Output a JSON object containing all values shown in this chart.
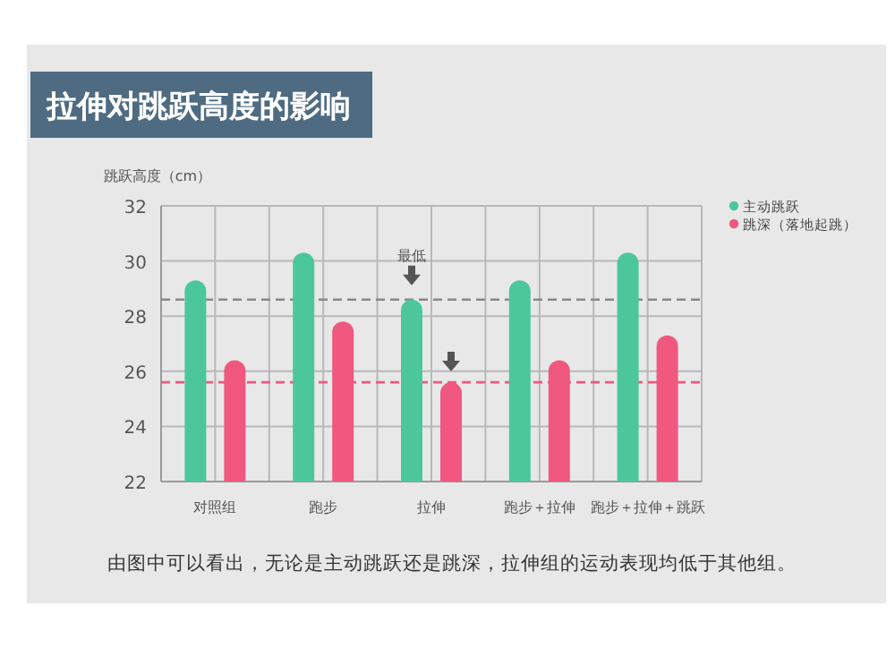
{
  "chart_data": {
    "type": "bar",
    "title": "拉伸对跳跃高度的影响",
    "ylabel": "跳跃高度（cm）",
    "categories": [
      "对照组",
      "跑步",
      "拉伸",
      "跑步＋拉伸",
      "跑步＋拉伸＋跳跃"
    ],
    "series": [
      {
        "name": "主动跳跃",
        "color": "#4cc79c",
        "values": [
          29.3,
          30.3,
          28.6,
          29.3,
          30.3
        ]
      },
      {
        "name": "跳深（落地起跳）",
        "color": "#f0587f",
        "values": [
          26.4,
          27.8,
          25.6,
          26.4,
          27.3
        ]
      }
    ],
    "ylim": [
      22,
      32
    ],
    "yticks": [
      22,
      24,
      26,
      28,
      30,
      32
    ],
    "grid": true,
    "legend": "top right",
    "ref_lines": [
      {
        "axis": "y",
        "value": 28.6,
        "color": "#888888",
        "line_style": "dashed"
      },
      {
        "axis": "y",
        "value": 25.6,
        "color": "#f0587f",
        "line_style": "dashed"
      }
    ],
    "annotations": [
      {
        "text": "最低",
        "x": "拉伸",
        "y": 28.6
      },
      "由图中可以看出，无论是主动跳跃还是跳深，拉伸组的运动表现均低于其他组。"
    ]
  }
}
